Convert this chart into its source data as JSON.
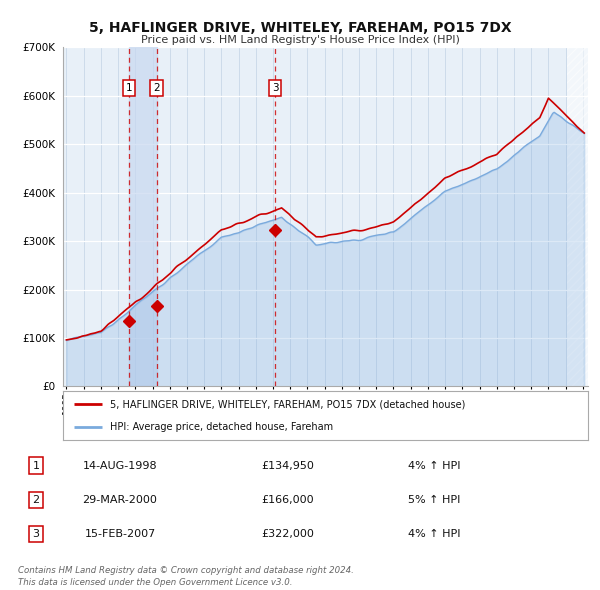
{
  "title": "5, HAFLINGER DRIVE, WHITELEY, FAREHAM, PO15 7DX",
  "subtitle": "Price paid vs. HM Land Registry's House Price Index (HPI)",
  "ylim": [
    0,
    700000
  ],
  "yticks": [
    0,
    100000,
    200000,
    300000,
    400000,
    500000,
    600000,
    700000
  ],
  "xlim_start": 1994.8,
  "xlim_end": 2025.3,
  "background_color": "#ffffff",
  "plot_bg_color": "#e8f0f8",
  "grid_color": "#c8d8e8",
  "legend_label_red": "5, HAFLINGER DRIVE, WHITELEY, FAREHAM, PO15 7DX (detached house)",
  "legend_label_blue": "HPI: Average price, detached house, Fareham",
  "transactions": [
    {
      "num": 1,
      "date_x": 1998.62,
      "price": 134950,
      "label": "1"
    },
    {
      "num": 2,
      "date_x": 2000.24,
      "price": 166000,
      "label": "2"
    },
    {
      "num": 3,
      "date_x": 2007.12,
      "price": 322000,
      "label": "3"
    }
  ],
  "table_rows": [
    {
      "num": "1",
      "date": "14-AUG-1998",
      "price": "£134,950",
      "change": "4% ↑ HPI"
    },
    {
      "num": "2",
      "date": "29-MAR-2000",
      "price": "£166,000",
      "change": "5% ↑ HPI"
    },
    {
      "num": "3",
      "date": "15-FEB-2007",
      "price": "£322,000",
      "change": "4% ↑ HPI"
    }
  ],
  "footer_text": "Contains HM Land Registry data © Crown copyright and database right 2024.\nThis data is licensed under the Open Government Licence v3.0.",
  "red_color": "#cc0000",
  "blue_color": "#7aaadd",
  "highlight_color": "#c8d8f0",
  "hatch_color": "#bbbbbb"
}
